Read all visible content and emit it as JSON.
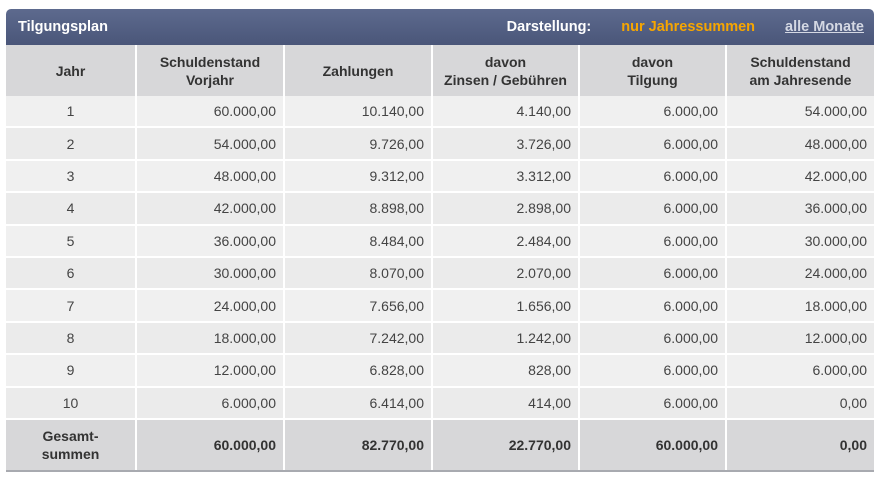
{
  "header": {
    "title": "Tilgungsplan",
    "darstellung_label": "Darstellung:",
    "option_active": "nur Jahressummen",
    "option_link": "alle Monate"
  },
  "columns": [
    [
      "Jahr"
    ],
    [
      "Schuldenstand",
      "Vorjahr"
    ],
    [
      "Zahlungen"
    ],
    [
      "davon",
      "Zinsen / Gebühren"
    ],
    [
      "davon",
      "Tilgung"
    ],
    [
      "Schuldenstand",
      "am Jahresende"
    ]
  ],
  "rows": [
    [
      "1",
      "60.000,00",
      "10.140,00",
      "4.140,00",
      "6.000,00",
      "54.000,00"
    ],
    [
      "2",
      "54.000,00",
      "9.726,00",
      "3.726,00",
      "6.000,00",
      "48.000,00"
    ],
    [
      "3",
      "48.000,00",
      "9.312,00",
      "3.312,00",
      "6.000,00",
      "42.000,00"
    ],
    [
      "4",
      "42.000,00",
      "8.898,00",
      "2.898,00",
      "6.000,00",
      "36.000,00"
    ],
    [
      "5",
      "36.000,00",
      "8.484,00",
      "2.484,00",
      "6.000,00",
      "30.000,00"
    ],
    [
      "6",
      "30.000,00",
      "8.070,00",
      "2.070,00",
      "6.000,00",
      "24.000,00"
    ],
    [
      "7",
      "24.000,00",
      "7.656,00",
      "1.656,00",
      "6.000,00",
      "18.000,00"
    ],
    [
      "8",
      "18.000,00",
      "7.242,00",
      "1.242,00",
      "6.000,00",
      "12.000,00"
    ],
    [
      "9",
      "12.000,00",
      "6.828,00",
      "828,00",
      "6.000,00",
      "6.000,00"
    ],
    [
      "10",
      "6.000,00",
      "6.414,00",
      "414,00",
      "6.000,00",
      "0,00"
    ]
  ],
  "totals": {
    "label": [
      "Gesamt-",
      "summen"
    ],
    "values": [
      "60.000,00",
      "82.770,00",
      "22.770,00",
      "60.000,00",
      "0,00"
    ]
  },
  "colors": {
    "header_bar": "#4f5b80",
    "active_option": "#f7a600",
    "header_cell": "#d7d7d9",
    "row_bg": "#f0f0f0"
  }
}
